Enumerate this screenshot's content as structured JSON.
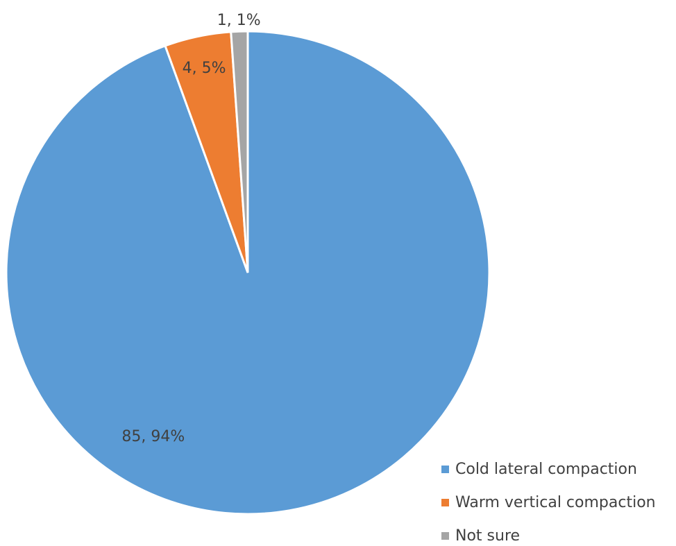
{
  "chart_data": {
    "type": "pie",
    "title": "",
    "categories": [
      "Cold lateral compaction",
      "Warm vertical compaction",
      "Not sure"
    ],
    "values": [
      85,
      4,
      1
    ],
    "percentages": [
      94,
      5,
      1
    ],
    "data_labels": [
      "85, 94%",
      "4, 5%",
      "1, 1%"
    ],
    "colors": [
      "#5B9BD5",
      "#ED7D31",
      "#A5A5A5"
    ],
    "start_angle": "12 o'clock",
    "direction": "clockwise",
    "legend": {
      "position": "bottom-right",
      "entries": [
        "Cold lateral compaction",
        "Warm vertical compaction",
        "Not sure"
      ]
    }
  }
}
